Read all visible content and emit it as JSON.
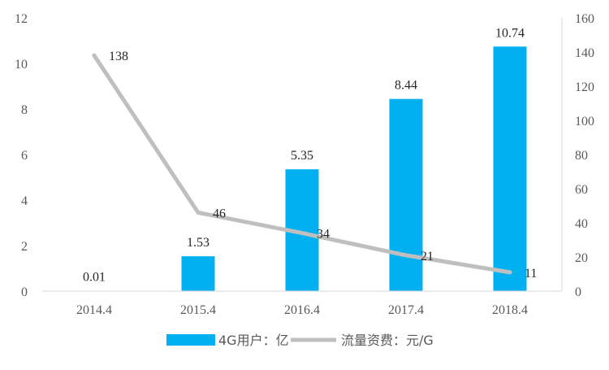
{
  "chart_data": {
    "type": "bar",
    "categories": [
      "2014.4",
      "2015.4",
      "2016.4",
      "2017.4",
      "2018.4"
    ],
    "series": [
      {
        "name": "4G用户：亿",
        "type": "bar",
        "axis": "left",
        "color": "#00B0F0",
        "values": [
          0.01,
          1.53,
          5.35,
          8.44,
          10.74
        ],
        "labels": [
          "0.01",
          "1.53",
          "5.35",
          "8.44",
          "10.74"
        ]
      },
      {
        "name": "流量资费：元/G",
        "type": "line",
        "axis": "right",
        "color": "#BFBFBF",
        "values": [
          138,
          46,
          34,
          21,
          11
        ],
        "labels": [
          "138",
          "46",
          "34",
          "21",
          "11"
        ]
      }
    ],
    "y_left": {
      "min": 0,
      "max": 12,
      "ticks": [
        "0",
        "2",
        "4",
        "6",
        "8",
        "10",
        "12"
      ]
    },
    "y_right": {
      "min": 0,
      "max": 160,
      "ticks": [
        "0",
        "20",
        "40",
        "60",
        "80",
        "100",
        "120",
        "140",
        "160"
      ]
    },
    "grid": false,
    "legend_position": "bottom"
  }
}
